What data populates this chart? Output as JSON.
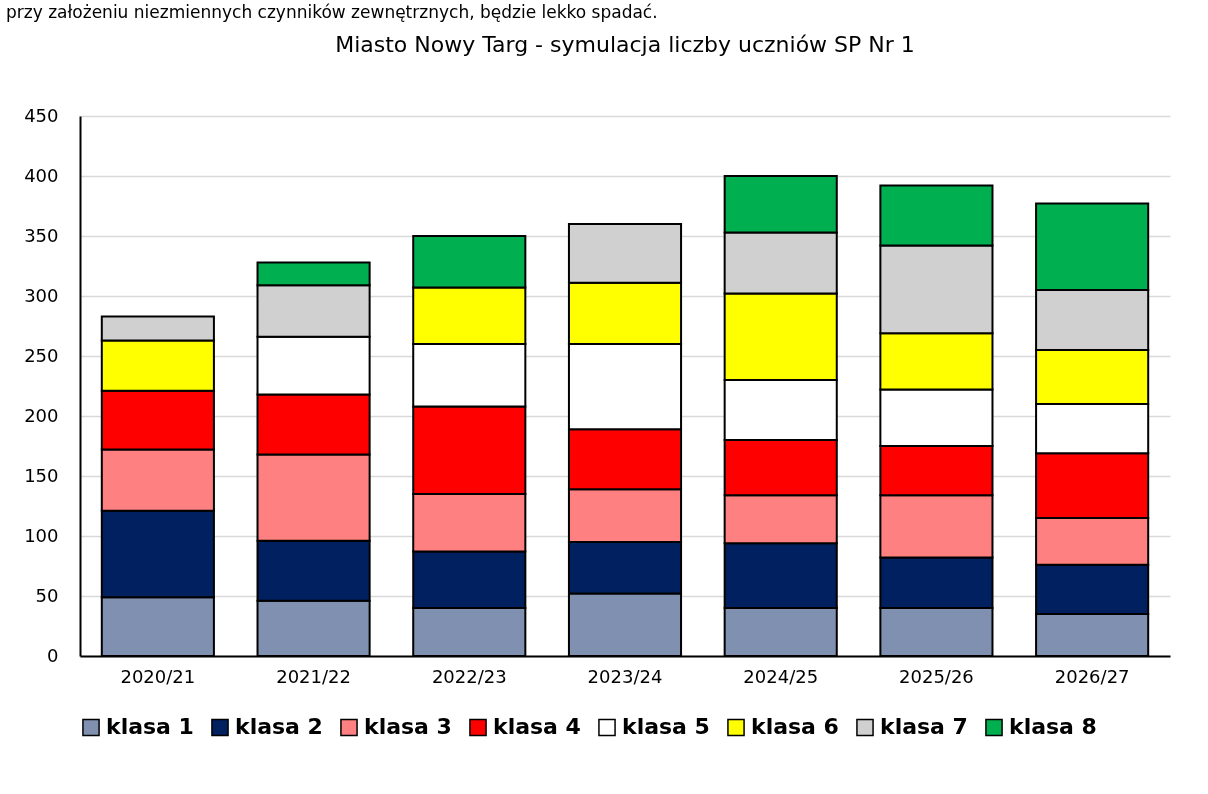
{
  "chart_data": {
    "type": "bar",
    "title": "Miasto Nowy Targ - symulacja liczby uczniów SP Nr  1",
    "annotations": [
      "przy założeniu niezmiennych czynników zewnętrznych,  będzie lekko spadać."
    ],
    "categories": [
      "2020/21",
      "2021/22",
      "2022/23",
      "2023/24",
      "2024/25",
      "2025/26",
      "2026/27"
    ],
    "stacked": true,
    "series": [
      {
        "name": "klasa 1",
        "color": "#8090b0",
        "values": [
          49,
          46,
          40,
          52,
          40,
          40,
          35
        ]
      },
      {
        "name": "klasa 2",
        "color": "#002060",
        "values": [
          72,
          50,
          47,
          43,
          54,
          42,
          41
        ]
      },
      {
        "name": "klasa 3",
        "color": "#ff8080",
        "values": [
          51,
          72,
          48,
          44,
          40,
          52,
          39
        ]
      },
      {
        "name": "klasa 4",
        "color": "#ff0000",
        "values": [
          49,
          50,
          73,
          50,
          46,
          41,
          54
        ]
      },
      {
        "name": "klasa 5",
        "color": "#ffffff",
        "values": [
          null,
          48,
          52,
          71,
          50,
          47,
          41
        ]
      },
      {
        "name": "klasa 6",
        "color": "#ffff00",
        "values": [
          42,
          null,
          47,
          51,
          72,
          47,
          45
        ]
      },
      {
        "name": "klasa 7",
        "color": "#d0d0d0",
        "values": [
          20,
          43,
          null,
          49,
          51,
          73,
          50
        ]
      },
      {
        "name": "klasa 8",
        "color": "#00b050",
        "values": [
          null,
          19,
          43,
          null,
          47,
          50,
          72
        ]
      }
    ],
    "ylim": [
      0,
      450
    ],
    "yticks": [
      0,
      50,
      100,
      150,
      200,
      250,
      300,
      350,
      400,
      450
    ],
    "grid": "y",
    "legend": "bottom"
  }
}
